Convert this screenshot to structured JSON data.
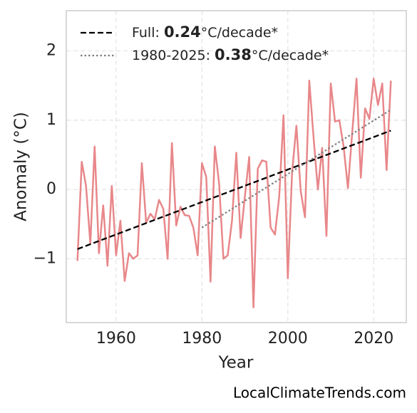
{
  "chart_data": {
    "type": "line",
    "xlabel": "Year",
    "ylabel": "Anomaly (°C)",
    "credit": "LocalClimateTrends.com",
    "xlim": [
      1948.4,
      2027.6
    ],
    "ylim": [
      -1.92,
      2.58
    ],
    "xticks": [
      1960,
      1980,
      2000,
      2020
    ],
    "yticks": [
      {
        "value": -1,
        "label": "−1"
      },
      0,
      1,
      2
    ],
    "grid": true,
    "legend": "upper left",
    "series": [
      {
        "color": "#e8878a",
        "style": "solid",
        "legend": false,
        "x": [
          1951,
          1952,
          1953,
          1954,
          1955,
          1956,
          1957,
          1958,
          1959,
          1960,
          1961,
          1962,
          1963,
          1964,
          1965,
          1966,
          1967,
          1968,
          1969,
          1970,
          1971,
          1972,
          1973,
          1974,
          1975,
          1976,
          1977,
          1978,
          1979,
          1980,
          1981,
          1982,
          1983,
          1984,
          1985,
          1986,
          1987,
          1988,
          1989,
          1990,
          1991,
          1992,
          1993,
          1994,
          1995,
          1996,
          1997,
          1998,
          1999,
          2000,
          2001,
          2002,
          2003,
          2004,
          2005,
          2006,
          2007,
          2008,
          2009,
          2010,
          2011,
          2012,
          2013,
          2014,
          2015,
          2016,
          2017,
          2018,
          2019,
          2020,
          2021,
          2022,
          2023,
          2024
        ],
        "values": [
          -1.03,
          0.4,
          0.05,
          -0.78,
          0.62,
          -0.92,
          -0.23,
          -1.1,
          0.05,
          -0.95,
          -0.45,
          -1.32,
          -0.92,
          -1.0,
          -0.95,
          0.38,
          -0.48,
          -0.35,
          -0.43,
          -0.15,
          -0.28,
          -1.0,
          0.67,
          -0.52,
          -0.25,
          -0.37,
          -0.38,
          -0.55,
          -0.95,
          0.38,
          0.18,
          -1.33,
          0.62,
          0.08,
          -1.0,
          -0.95,
          -0.45,
          0.53,
          -0.7,
          -0.1,
          0.47,
          -1.7,
          0.3,
          0.42,
          0.4,
          -0.55,
          -0.65,
          -0.1,
          1.07,
          -1.28,
          0.25,
          0.92,
          -0.02,
          -0.4,
          1.57,
          0.75,
          0.0,
          0.6,
          -0.67,
          1.53,
          0.98,
          1.0,
          0.62,
          0.02,
          0.82,
          1.6,
          0.17,
          1.17,
          1.02,
          1.6,
          1.22,
          1.53,
          0.28,
          1.57
        ]
      },
      {
        "name": [
          "Full: ",
          "0.24",
          "°C/decade*"
        ],
        "color": "#000000",
        "style": "dashed",
        "x": [
          1951,
          2024
        ],
        "values": [
          -0.86,
          0.85
        ]
      },
      {
        "name": [
          "1980-2025: ",
          "0.38",
          "°C/decade*"
        ],
        "color": "#808080",
        "style": "dotted",
        "x": [
          1980,
          2024
        ],
        "values": [
          -0.55,
          1.15
        ]
      }
    ]
  }
}
